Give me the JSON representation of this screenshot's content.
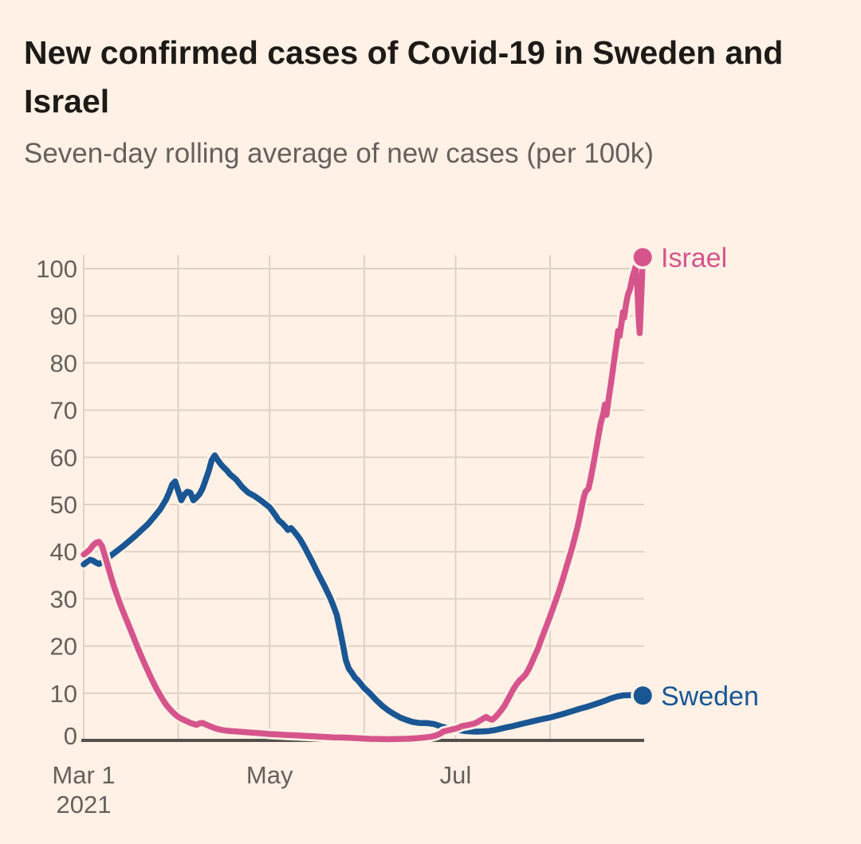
{
  "chart_data": {
    "type": "line",
    "title": "New confirmed cases of Covid-19 in Sweden and Israel",
    "subtitle": "Seven-day rolling average of new cases (per 100k)",
    "x_unit": "days since Mar 1 2021",
    "xlim_days": [
      0,
      184
    ],
    "ylim": [
      0,
      105
    ],
    "grid": true,
    "legend_position": "line-end",
    "x_gridline_days": [
      0,
      31,
      61,
      92,
      122,
      153
    ],
    "x_ticks": [
      {
        "day": 0,
        "label": "Mar 1",
        "sublabel": "2021"
      },
      {
        "day": 61,
        "label": "May",
        "sublabel": ""
      },
      {
        "day": 122,
        "label": "Jul",
        "sublabel": ""
      }
    ],
    "y_ticks": [
      0,
      10,
      20,
      30,
      40,
      50,
      60,
      70,
      80,
      90,
      100
    ],
    "colors": {
      "paper": "#FFF1E5",
      "grid": "#DED1C5",
      "axis": "#54504B",
      "tick_text": "#66605C",
      "title_text": "#1D1A17",
      "sweden": "#1A5694",
      "israel": "#D6548C"
    },
    "series": [
      {
        "name": "Sweden",
        "color": "#1A5694",
        "end_marker": true,
        "points": [
          [
            0,
            37.3
          ],
          [
            1,
            37.8
          ],
          [
            2,
            38.3
          ],
          [
            3,
            38.1
          ],
          [
            4,
            37.7
          ],
          [
            5,
            37.4
          ],
          [
            6,
            37.7
          ],
          [
            7,
            38.1
          ],
          [
            9,
            39.2
          ],
          [
            11,
            40.2
          ],
          [
            13,
            41.2
          ],
          [
            15,
            42.3
          ],
          [
            17,
            43.4
          ],
          [
            19,
            44.6
          ],
          [
            21,
            45.8
          ],
          [
            23,
            47.3
          ],
          [
            25,
            48.9
          ],
          [
            27,
            51.0
          ],
          [
            28,
            52.5
          ],
          [
            29,
            54.2
          ],
          [
            30,
            54.9
          ],
          [
            31,
            52.9
          ],
          [
            32,
            50.9
          ],
          [
            33,
            52.1
          ],
          [
            34,
            52.7
          ],
          [
            35,
            52.5
          ],
          [
            36,
            50.9
          ],
          [
            37,
            51.5
          ],
          [
            38,
            52.2
          ],
          [
            39,
            53.4
          ],
          [
            40,
            55.2
          ],
          [
            41,
            57.1
          ],
          [
            42,
            59.4
          ],
          [
            43,
            60.4
          ],
          [
            44,
            59.4
          ],
          [
            45,
            58.5
          ],
          [
            46,
            57.8
          ],
          [
            47,
            57.2
          ],
          [
            48,
            56.4
          ],
          [
            50,
            55.3
          ],
          [
            52,
            53.7
          ],
          [
            54,
            52.5
          ],
          [
            56,
            51.8
          ],
          [
            58,
            50.9
          ],
          [
            60,
            49.9
          ],
          [
            61,
            49.4
          ],
          [
            62,
            48.5
          ],
          [
            63,
            47.6
          ],
          [
            64,
            46.6
          ],
          [
            65,
            46.1
          ],
          [
            66,
            45.4
          ],
          [
            67,
            44.6
          ],
          [
            68,
            45.0
          ],
          [
            69,
            44.3
          ],
          [
            70,
            43.5
          ],
          [
            71,
            42.6
          ],
          [
            72,
            41.5
          ],
          [
            73,
            40.3
          ],
          [
            75,
            37.8
          ],
          [
            77,
            35.2
          ],
          [
            79,
            32.7
          ],
          [
            81,
            30.0
          ],
          [
            82,
            28.4
          ],
          [
            83,
            26.6
          ],
          [
            84,
            23.6
          ],
          [
            85,
            20.4
          ],
          [
            86,
            17.0
          ],
          [
            87,
            15.2
          ],
          [
            88,
            14.3
          ],
          [
            89,
            13.3
          ],
          [
            90,
            12.7
          ],
          [
            92,
            11.1
          ],
          [
            94,
            9.9
          ],
          [
            96,
            8.5
          ],
          [
            98,
            7.3
          ],
          [
            100,
            6.3
          ],
          [
            102,
            5.5
          ],
          [
            104,
            4.8
          ],
          [
            106,
            4.3
          ],
          [
            108,
            3.9
          ],
          [
            110,
            3.7
          ],
          [
            113,
            3.65
          ],
          [
            115,
            3.45
          ],
          [
            117,
            3.0
          ],
          [
            119,
            2.65
          ],
          [
            121,
            2.35
          ],
          [
            123,
            2.15
          ],
          [
            125,
            2.0
          ],
          [
            127,
            1.9
          ],
          [
            129,
            1.85
          ],
          [
            131,
            1.9
          ],
          [
            133,
            2.0
          ],
          [
            135,
            2.2
          ],
          [
            137,
            2.5
          ],
          [
            139,
            2.8
          ],
          [
            141,
            3.05
          ],
          [
            143,
            3.4
          ],
          [
            145,
            3.7
          ],
          [
            147,
            4.0
          ],
          [
            149,
            4.3
          ],
          [
            151,
            4.6
          ],
          [
            153,
            4.85
          ],
          [
            155,
            5.2
          ],
          [
            157,
            5.55
          ],
          [
            159,
            5.95
          ],
          [
            161,
            6.35
          ],
          [
            163,
            6.75
          ],
          [
            165,
            7.1
          ],
          [
            167,
            7.5
          ],
          [
            169,
            7.95
          ],
          [
            171,
            8.4
          ],
          [
            173,
            8.9
          ],
          [
            175,
            9.3
          ],
          [
            177,
            9.55
          ],
          [
            179,
            9.6
          ],
          [
            181,
            9.6
          ],
          [
            183.4,
            9.5
          ]
        ]
      },
      {
        "name": "Israel",
        "color": "#D6548C",
        "end_marker": true,
        "points": [
          [
            0,
            39.4
          ],
          [
            1,
            39.9
          ],
          [
            2,
            40.4
          ],
          [
            3,
            41.3
          ],
          [
            4,
            41.9
          ],
          [
            5,
            42.1
          ],
          [
            6,
            41.2
          ],
          [
            7,
            39.0
          ],
          [
            8,
            36.8
          ],
          [
            9,
            34.6
          ],
          [
            10,
            32.5
          ],
          [
            11,
            30.6
          ],
          [
            12,
            28.8
          ],
          [
            13,
            27.2
          ],
          [
            14,
            25.6
          ],
          [
            15,
            24.0
          ],
          [
            16,
            22.4
          ],
          [
            17,
            20.8
          ],
          [
            18,
            19.2
          ],
          [
            19,
            17.7
          ],
          [
            20,
            16.2
          ],
          [
            21,
            14.8
          ],
          [
            22,
            13.4
          ],
          [
            23,
            12.1
          ],
          [
            24,
            10.8
          ],
          [
            25,
            9.7
          ],
          [
            26,
            8.6
          ],
          [
            27,
            7.6
          ],
          [
            28,
            6.8
          ],
          [
            29,
            6.1
          ],
          [
            30,
            5.5
          ],
          [
            31,
            5.0
          ],
          [
            32,
            4.6
          ],
          [
            33,
            4.3
          ],
          [
            34,
            4.0
          ],
          [
            35,
            3.7
          ],
          [
            36,
            3.5
          ],
          [
            37,
            3.3
          ],
          [
            38,
            3.6
          ],
          [
            39,
            3.7
          ],
          [
            40,
            3.4
          ],
          [
            41,
            3.1
          ],
          [
            43,
            2.6
          ],
          [
            45,
            2.25
          ],
          [
            47,
            2.05
          ],
          [
            50,
            1.9
          ],
          [
            53,
            1.75
          ],
          [
            56,
            1.6
          ],
          [
            59,
            1.45
          ],
          [
            61,
            1.35
          ],
          [
            64,
            1.25
          ],
          [
            67,
            1.15
          ],
          [
            70,
            1.05
          ],
          [
            73,
            0.95
          ],
          [
            76,
            0.85
          ],
          [
            79,
            0.75
          ],
          [
            82,
            0.65
          ],
          [
            85,
            0.6
          ],
          [
            88,
            0.52
          ],
          [
            91,
            0.42
          ],
          [
            94,
            0.32
          ],
          [
            97,
            0.28
          ],
          [
            100,
            0.26
          ],
          [
            103,
            0.28
          ],
          [
            106,
            0.33
          ],
          [
            108,
            0.4
          ],
          [
            110,
            0.5
          ],
          [
            112,
            0.62
          ],
          [
            114,
            0.8
          ],
          [
            115,
            0.95
          ],
          [
            116,
            1.15
          ],
          [
            117,
            1.45
          ],
          [
            118,
            1.9
          ],
          [
            119,
            2.05
          ],
          [
            120,
            2.2
          ],
          [
            121,
            2.35
          ],
          [
            122,
            2.5
          ],
          [
            123,
            2.7
          ],
          [
            124,
            3.0
          ],
          [
            125,
            3.15
          ],
          [
            126,
            3.25
          ],
          [
            127,
            3.4
          ],
          [
            128,
            3.55
          ],
          [
            129,
            3.8
          ],
          [
            130,
            4.2
          ],
          [
            131,
            4.6
          ],
          [
            132,
            4.95
          ],
          [
            133,
            4.6
          ],
          [
            134,
            4.4
          ],
          [
            135,
            4.9
          ],
          [
            136,
            5.6
          ],
          [
            137,
            6.4
          ],
          [
            138,
            7.3
          ],
          [
            139,
            8.5
          ],
          [
            140,
            9.7
          ],
          [
            141,
            10.9
          ],
          [
            142,
            11.9
          ],
          [
            143,
            12.7
          ],
          [
            144,
            13.3
          ],
          [
            145,
            14.0
          ],
          [
            146,
            15.1
          ],
          [
            147,
            16.5
          ],
          [
            148,
            18.0
          ],
          [
            149,
            19.4
          ],
          [
            150,
            21.2
          ],
          [
            151,
            22.9
          ],
          [
            152,
            24.6
          ],
          [
            153,
            26.3
          ],
          [
            154,
            28.1
          ],
          [
            155,
            29.9
          ],
          [
            156,
            31.8
          ],
          [
            157,
            33.8
          ],
          [
            158,
            36.0
          ],
          [
            159,
            38.1
          ],
          [
            160,
            40.3
          ],
          [
            161,
            42.7
          ],
          [
            162,
            45.2
          ],
          [
            162.8,
            47.6
          ],
          [
            163.4,
            49.6
          ],
          [
            164,
            51.4
          ],
          [
            164.6,
            52.7
          ],
          [
            165.6,
            53.4
          ],
          [
            166.4,
            55.7
          ],
          [
            167.2,
            58.5
          ],
          [
            168,
            61.4
          ],
          [
            168.8,
            64.3
          ],
          [
            169.6,
            67.2
          ],
          [
            170.5,
            69.4
          ],
          [
            171,
            71.2
          ],
          [
            171.5,
            69.0
          ],
          [
            172.2,
            72.3
          ],
          [
            173,
            75.8
          ],
          [
            173.8,
            79.5
          ],
          [
            174.4,
            82.3
          ],
          [
            174.9,
            84.5
          ],
          [
            175.3,
            86.8
          ],
          [
            175.8,
            85.7
          ],
          [
            176.4,
            88.3
          ],
          [
            176.9,
            90.8
          ],
          [
            177.3,
            89.6
          ],
          [
            177.9,
            92.4
          ],
          [
            178.5,
            94.4
          ],
          [
            179.2,
            95.6
          ],
          [
            179.7,
            97.1
          ],
          [
            180.1,
            98.4
          ],
          [
            180.6,
            99.4
          ],
          [
            181,
            100.3
          ],
          [
            181.6,
            96.0
          ],
          [
            182,
            90.0
          ],
          [
            182.4,
            86.3
          ],
          [
            182.8,
            92.0
          ],
          [
            183.1,
            97.0
          ],
          [
            183.4,
            102.4
          ]
        ]
      }
    ]
  }
}
